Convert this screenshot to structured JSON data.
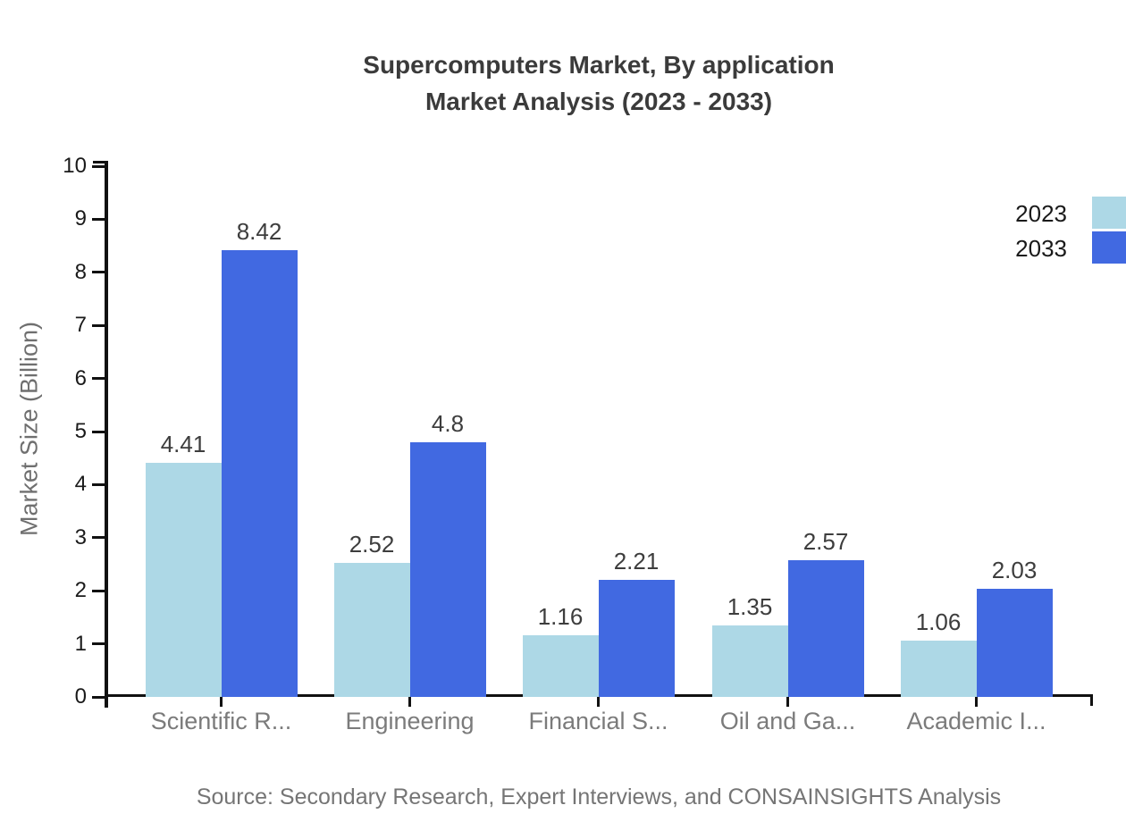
{
  "title": {
    "line1": "Supercomputers Market, By application",
    "line2": "Market Analysis (2023 - 2033)"
  },
  "source_note": "Source: Secondary Research, Expert Interviews, and CONSAINSIGHTS Analysis",
  "legend": {
    "position": "top-right",
    "items": [
      {
        "label": "2023",
        "color": "#add8e6"
      },
      {
        "label": "2033",
        "color": "#4169e1"
      }
    ]
  },
  "chart_data": {
    "type": "bar",
    "title": "Supercomputers Market, By application Market Analysis (2023 - 2033)",
    "categories": [
      "Scientific R...",
      "Engineering",
      "Financial S...",
      "Oil and Ga...",
      "Academic I..."
    ],
    "series": [
      {
        "name": "2023",
        "color": "#add8e6",
        "values": [
          4.41,
          2.52,
          1.16,
          1.35,
          1.06
        ]
      },
      {
        "name": "2033",
        "color": "#4169e1",
        "values": [
          8.42,
          4.8,
          2.21,
          2.57,
          2.03
        ]
      }
    ],
    "xlabel": "",
    "ylabel": "Market Size (Billion)",
    "ylim": [
      0,
      10
    ],
    "yticks": [
      0,
      1,
      2,
      3,
      4,
      5,
      6,
      7,
      8,
      9,
      10
    ],
    "grid": false,
    "value_labels": true,
    "axis_color": "#111111"
  }
}
